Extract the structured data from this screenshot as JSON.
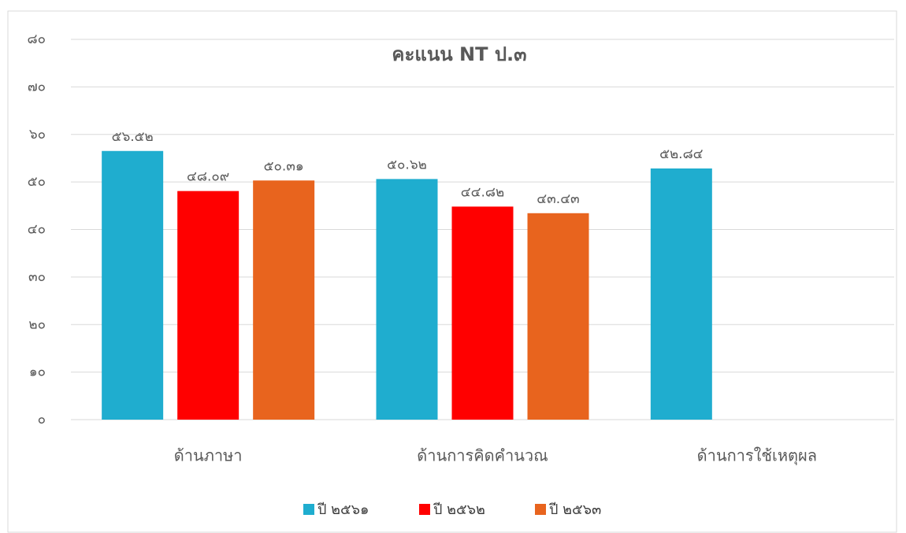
{
  "chart_data": {
    "type": "bar",
    "title": "คะแนน NT ป.๓",
    "categories": [
      "ด้านภาษา",
      "ด้านการคิดคำนวณ",
      "ด้านการใช้เหตุผล"
    ],
    "series": [
      {
        "name": "ปี ๒๕๖๑",
        "color": "#1fadcf",
        "values": [
          56.52,
          50.62,
          52.84
        ],
        "value_labels": [
          "๕๖.๕๒",
          "๕๐.๖๒",
          "๕๒.๘๔"
        ]
      },
      {
        "name": "ปี ๒๕๖๒",
        "color": "#ff0000",
        "values": [
          48.09,
          44.82,
          null
        ],
        "value_labels": [
          "๔๘.๐๙",
          "๔๔.๘๒",
          null
        ]
      },
      {
        "name": "ปี ๒๕๖๓",
        "color": "#e8641e",
        "values": [
          50.31,
          43.43,
          null
        ],
        "value_labels": [
          "๕๐.๓๑",
          "๔๓.๔๓",
          null
        ]
      }
    ],
    "ylim": [
      0,
      80
    ],
    "yticks": [
      {
        "value": 0,
        "label": "๐"
      },
      {
        "value": 10,
        "label": "๑๐"
      },
      {
        "value": 20,
        "label": "๒๐"
      },
      {
        "value": 30,
        "label": "๓๐"
      },
      {
        "value": 40,
        "label": "๔๐"
      },
      {
        "value": 50,
        "label": "๕๐"
      },
      {
        "value": 60,
        "label": "๖๐"
      },
      {
        "value": 70,
        "label": "๗๐"
      },
      {
        "value": 80,
        "label": "๘๐"
      }
    ],
    "grid": true,
    "legend": "bottom"
  }
}
